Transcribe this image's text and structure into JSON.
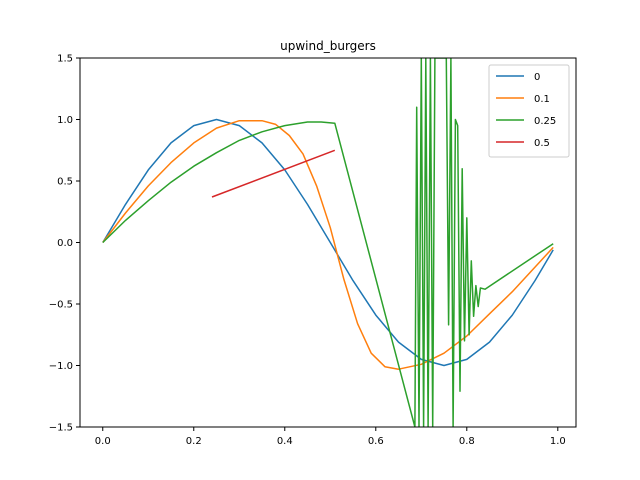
{
  "chart_data": {
    "type": "line",
    "title": "upwind_burgers",
    "xlabel": "",
    "ylabel": "",
    "xlim": [
      -0.05,
      1.04
    ],
    "ylim": [
      -1.5,
      1.5
    ],
    "grid": false,
    "legend_position": "top-right",
    "xticks": [
      0.0,
      0.2,
      0.4,
      0.6,
      0.8,
      1.0
    ],
    "xtick_labels": [
      "0.0",
      "0.2",
      "0.4",
      "0.6",
      "0.8",
      "1.0"
    ],
    "yticks": [
      -1.5,
      -1.0,
      -0.5,
      0.0,
      0.5,
      1.0,
      1.5
    ],
    "ytick_labels": [
      "−1.5",
      "−1.0",
      "−0.5",
      "0.0",
      "0.5",
      "1.0",
      "1.5"
    ],
    "series": [
      {
        "name": "0",
        "color": "#1f77b4",
        "x": [
          0.0,
          0.05,
          0.1,
          0.15,
          0.2,
          0.25,
          0.3,
          0.35,
          0.4,
          0.45,
          0.5,
          0.55,
          0.6,
          0.65,
          0.7,
          0.75,
          0.8,
          0.85,
          0.9,
          0.95,
          0.99
        ],
        "y": [
          0.0,
          0.31,
          0.59,
          0.81,
          0.95,
          1.0,
          0.95,
          0.81,
          0.59,
          0.31,
          0.0,
          -0.31,
          -0.59,
          -0.81,
          -0.95,
          -1.0,
          -0.95,
          -0.81,
          -0.59,
          -0.31,
          -0.06
        ]
      },
      {
        "name": "0.1",
        "color": "#ff7f0e",
        "x": [
          0.0,
          0.05,
          0.1,
          0.15,
          0.2,
          0.25,
          0.3,
          0.35,
          0.38,
          0.41,
          0.44,
          0.47,
          0.5,
          0.53,
          0.56,
          0.59,
          0.62,
          0.65,
          0.7,
          0.75,
          0.8,
          0.85,
          0.9,
          0.95,
          0.99
        ],
        "y": [
          0.0,
          0.24,
          0.46,
          0.65,
          0.81,
          0.93,
          0.99,
          0.99,
          0.96,
          0.87,
          0.72,
          0.46,
          0.12,
          -0.3,
          -0.66,
          -0.9,
          -1.01,
          -1.03,
          -0.99,
          -0.9,
          -0.76,
          -0.58,
          -0.4,
          -0.2,
          -0.04
        ]
      },
      {
        "name": "0.25",
        "color": "#2ca02c",
        "x": [
          0.0,
          0.05,
          0.1,
          0.15,
          0.2,
          0.25,
          0.3,
          0.35,
          0.4,
          0.45,
          0.48,
          0.51,
          0.686,
          0.69,
          0.695,
          0.7,
          0.705,
          0.71,
          0.715,
          0.72,
          0.725,
          0.73,
          0.735,
          0.74,
          0.745,
          0.75,
          0.755,
          0.76,
          0.765,
          0.77,
          0.775,
          0.78,
          0.785,
          0.79,
          0.795,
          0.8,
          0.805,
          0.81,
          0.815,
          0.82,
          0.825,
          0.83,
          0.84,
          0.99
        ],
        "y": [
          0.0,
          0.18,
          0.34,
          0.49,
          0.62,
          0.73,
          0.83,
          0.9,
          0.95,
          0.98,
          0.98,
          0.97,
          -1.5,
          1.1,
          -1.5,
          1.5,
          -1.5,
          1.5,
          -1.5,
          1.5,
          -1.5,
          1.5,
          1.5,
          1.5,
          1.5,
          1.5,
          1.5,
          -0.67,
          1.5,
          -1.5,
          1.0,
          0.95,
          -1.21,
          0.6,
          -0.8,
          0.2,
          -0.75,
          -0.15,
          -0.6,
          -0.35,
          -0.52,
          -0.37,
          -0.38,
          -0.01
        ]
      },
      {
        "name": "0.5",
        "color": "#d62728",
        "x": [
          0.24,
          0.51
        ],
        "y": [
          0.37,
          0.75
        ]
      }
    ]
  }
}
